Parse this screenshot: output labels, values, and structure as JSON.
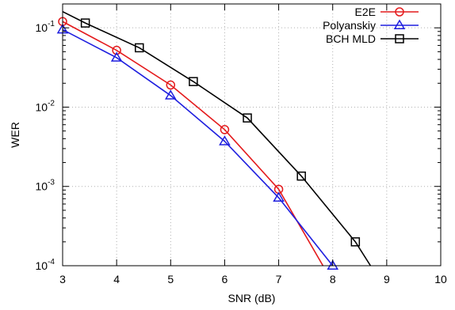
{
  "chart_data": {
    "type": "line",
    "title": "",
    "xlabel": "SNR (dB)",
    "ylabel": "WER",
    "xlim": [
      3,
      10
    ],
    "ylim": [
      0.0001,
      0.2
    ],
    "yscale": "log",
    "grid": true,
    "legend_position": "top-right",
    "x_ticks": [
      3,
      4,
      5,
      6,
      7,
      8,
      9,
      10
    ],
    "x_tick_labels": [
      "3",
      "4",
      "5",
      "6",
      "7",
      "8",
      "9",
      "10"
    ],
    "y_ticks": [
      0.1,
      0.01,
      0.001,
      0.0001
    ],
    "y_tick_labels": [
      {
        "base": "10",
        "exp": "-1"
      },
      {
        "base": "10",
        "exp": "-2"
      },
      {
        "base": "10",
        "exp": "-3"
      },
      {
        "base": "10",
        "exp": "-4"
      }
    ],
    "series": [
      {
        "name": "E2E",
        "color": "#e41a1c",
        "marker": "circle",
        "x": [
          3,
          4,
          5,
          6,
          7,
          7.82
        ],
        "y": [
          0.12,
          0.052,
          0.019,
          0.0052,
          0.00092,
          0.0001
        ],
        "marker_points": [
          0,
          1,
          2,
          3,
          4
        ]
      },
      {
        "name": "Polyanskiy",
        "color": "#1f1fdf",
        "marker": "triangle",
        "x": [
          3,
          4,
          5,
          6,
          7,
          8
        ],
        "y": [
          0.095,
          0.042,
          0.014,
          0.0037,
          0.00072,
          0.0001
        ],
        "marker_points": [
          0,
          1,
          2,
          3,
          4,
          5
        ]
      },
      {
        "name": "BCH MLD",
        "color": "#000000",
        "marker": "square",
        "x": [
          3,
          3.42,
          4.42,
          5.42,
          6.42,
          7.42,
          8.42,
          8.7
        ],
        "y": [
          0.16,
          0.115,
          0.056,
          0.021,
          0.0073,
          0.00135,
          0.0002,
          0.0001
        ],
        "marker_points": [
          1,
          2,
          3,
          4,
          5,
          6
        ]
      }
    ]
  }
}
